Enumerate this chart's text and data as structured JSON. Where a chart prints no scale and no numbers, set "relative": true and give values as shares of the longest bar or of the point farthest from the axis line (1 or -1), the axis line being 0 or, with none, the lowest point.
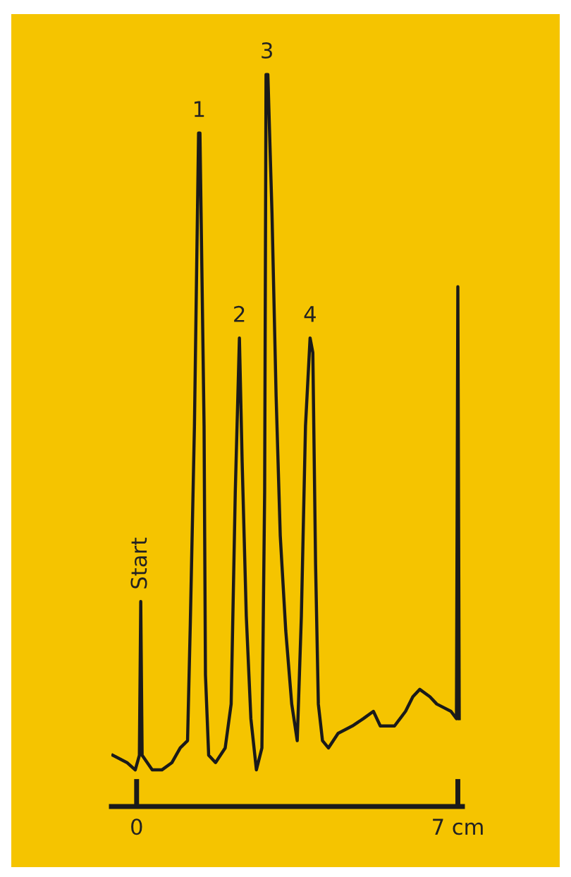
{
  "chart_data": {
    "type": "line",
    "relative": true,
    "tick_labels": "x",
    "xlim": [
      -0.55,
      7.1
    ],
    "xticks": [
      {
        "value": 0,
        "label": "0"
      },
      {
        "value": 7,
        "label": "7 cm"
      }
    ],
    "series": [
      {
        "color": "#1a1a1a",
        "x": [
          -0.52,
          -0.21,
          -0.03,
          0.06,
          0.09,
          0.12,
          0.34,
          0.55,
          0.77,
          0.95,
          1.11,
          1.17,
          1.26,
          1.35,
          1.38,
          1.47,
          1.5,
          1.57,
          1.72,
          1.93,
          2.06,
          2.15,
          2.24,
          2.3,
          2.39,
          2.49,
          2.61,
          2.73,
          2.79,
          2.82,
          2.86,
          2.95,
          3.04,
          3.13,
          3.25,
          3.38,
          3.5,
          3.59,
          3.68,
          3.78,
          3.84,
          3.9,
          3.96,
          4.05,
          4.18,
          4.39,
          4.7,
          4.94,
          5.16,
          5.31,
          5.62,
          5.86,
          6.02,
          6.17,
          6.39,
          6.54,
          6.85,
          6.97,
          7.0,
          7.03
        ],
        "values": [
          0.07,
          0.06,
          0.05,
          0.07,
          0.28,
          0.07,
          0.05,
          0.05,
          0.06,
          0.08,
          0.09,
          0.25,
          0.52,
          0.92,
          0.92,
          0.52,
          0.18,
          0.07,
          0.06,
          0.08,
          0.14,
          0.43,
          0.64,
          0.47,
          0.26,
          0.12,
          0.05,
          0.08,
          0.43,
          1.0,
          1.0,
          0.81,
          0.56,
          0.37,
          0.24,
          0.14,
          0.09,
          0.26,
          0.52,
          0.64,
          0.62,
          0.33,
          0.14,
          0.09,
          0.08,
          0.1,
          0.11,
          0.12,
          0.13,
          0.11,
          0.11,
          0.13,
          0.15,
          0.16,
          0.15,
          0.14,
          0.13,
          0.12,
          0.71,
          0.12
        ]
      }
    ],
    "annotations": [
      {
        "text": "Start",
        "x": 0.09,
        "y": 0.28
      },
      {
        "text": "1",
        "x": 1.36,
        "y": 0.92
      },
      {
        "text": "2",
        "x": 2.24,
        "y": 0.64
      },
      {
        "text": "3",
        "x": 2.84,
        "y": 1.0
      },
      {
        "text": "4",
        "x": 3.78,
        "y": 0.64
      }
    ]
  }
}
